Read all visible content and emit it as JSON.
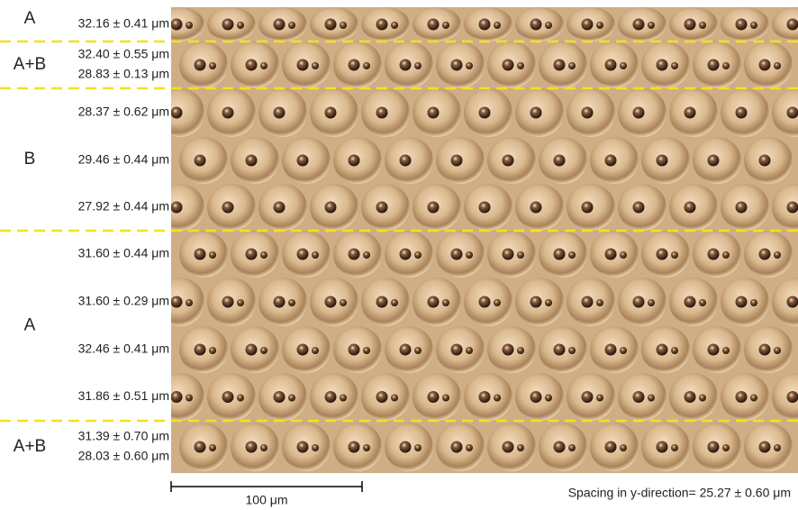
{
  "groups": [
    {
      "label": "A",
      "rows": [
        [
          "32.16 ± 0.41 μm"
        ]
      ]
    },
    {
      "label": "A+B",
      "rows": [
        [
          "32.40 ± 0.55 μm",
          "28.83 ± 0.13 μm"
        ]
      ]
    },
    {
      "label": "B",
      "rows": [
        [
          "28.37 ± 0.62 μm"
        ],
        [
          "29.46 ± 0.44 μm"
        ],
        [
          "27.92 ± 0.44 μm"
        ]
      ]
    },
    {
      "label": "A",
      "rows": [
        [
          "31.60 ± 0.44 μm"
        ],
        [
          "31.60 ± 0.29 μm"
        ],
        [
          "32.46 ± 0.41 μm"
        ],
        [
          "31.86 ± 0.51 μm"
        ]
      ]
    },
    {
      "label": "A+B",
      "rows": [
        [
          "31.39 ± 0.70 μm",
          "28.03 ± 0.60 μm"
        ]
      ]
    }
  ],
  "scale_bar": {
    "label": "100 μm"
  },
  "spacing_note": "Spacing in y-direction= 25.27 ± 0.60 μm"
}
